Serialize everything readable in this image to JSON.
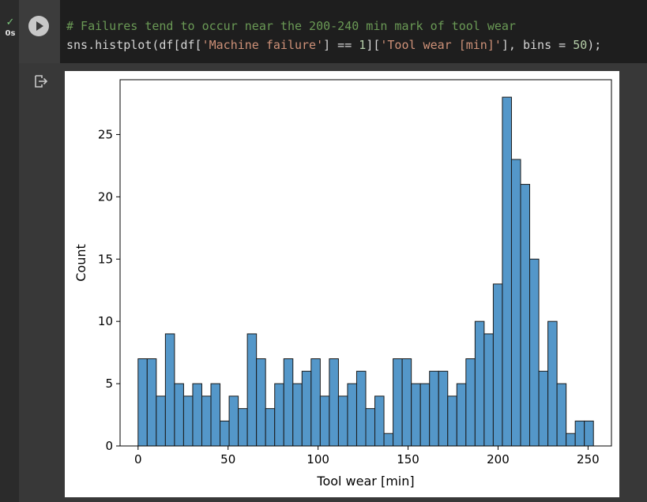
{
  "cell": {
    "status_check": "✓",
    "exec_time": "0s",
    "run_icon": "play-icon",
    "code_line1_comment": "# Failures tend to occur near the 200-240 min mark of tool wear",
    "code_line2": {
      "p1": "sns.histplot(df[df[",
      "s1": "'Machine failure'",
      "p2": "] == ",
      "n1": "1",
      "p3": "][",
      "s2": "'Tool wear [min]'",
      "p4": "], bins = ",
      "n2": "50",
      "p5": ");"
    },
    "output_icon": "output-redirect-icon"
  },
  "colors": {
    "bar_fill": "#5497c9",
    "bar_edge": "#1a1a1a",
    "comment": "#6a9955",
    "string": "#ce9178",
    "number": "#b5cea8"
  },
  "chart_data": {
    "type": "bar",
    "title": "",
    "xlabel": "Tool wear [min]",
    "ylabel": "Count",
    "xlim": [
      -10,
      263
    ],
    "ylim": [
      0,
      29.4
    ],
    "x_ticks": [
      0,
      50,
      100,
      150,
      200,
      250
    ],
    "y_ticks": [
      0,
      5,
      10,
      15,
      20,
      25
    ],
    "bin_start": 0,
    "bin_width": 5.06,
    "values": [
      7,
      7,
      4,
      9,
      5,
      4,
      5,
      4,
      5,
      2,
      4,
      3,
      9,
      7,
      3,
      5,
      7,
      5,
      6,
      7,
      4,
      7,
      4,
      5,
      6,
      3,
      4,
      1,
      7,
      7,
      5,
      5,
      6,
      6,
      4,
      5,
      7,
      10,
      9,
      13,
      28,
      23,
      21,
      15,
      6,
      10,
      5,
      1,
      2,
      2
    ],
    "grid": false
  }
}
